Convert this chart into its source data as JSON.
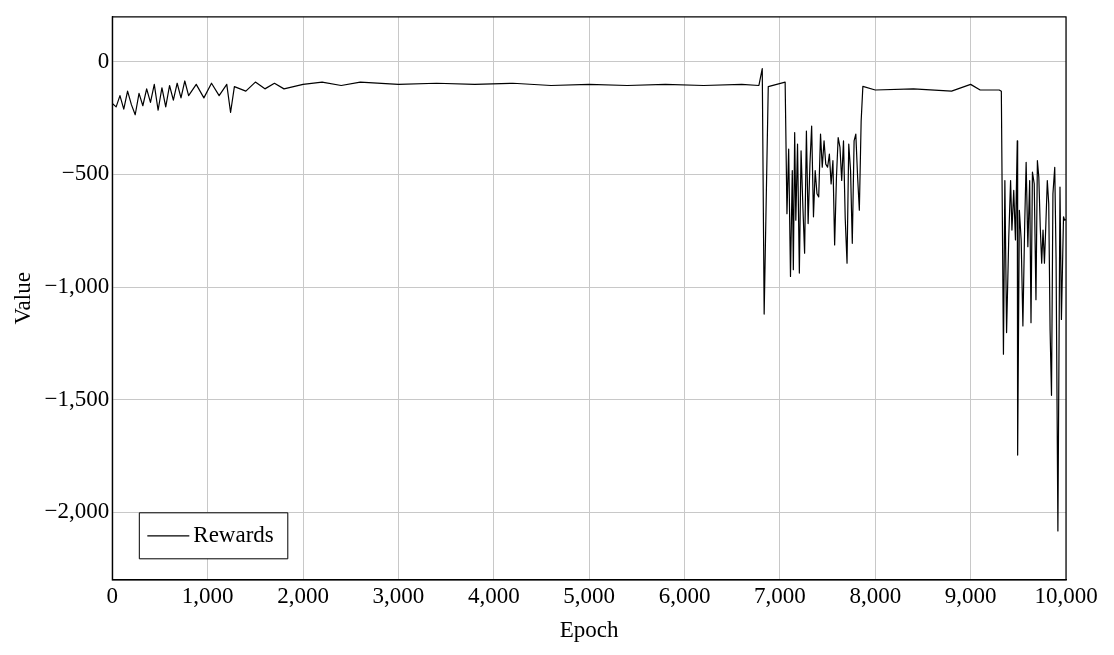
{
  "chart_data": {
    "type": "line",
    "xlabel": "Epoch",
    "ylabel": "Value",
    "xlim": [
      0,
      10000
    ],
    "ylim": [
      -2300,
      200
    ],
    "xticks": [
      0,
      {
        "value": 1000,
        "label": "1,000"
      },
      {
        "value": 2000,
        "label": "2,000"
      },
      {
        "value": 3000,
        "label": "3,000"
      },
      {
        "value": 4000,
        "label": "4,000"
      },
      {
        "value": 5000,
        "label": "5,000"
      },
      {
        "value": 6000,
        "label": "6,000"
      },
      {
        "value": 7000,
        "label": "7,000"
      },
      {
        "value": 8000,
        "label": "8,000"
      },
      {
        "value": 9000,
        "label": "9,000"
      },
      {
        "value": 10000,
        "label": "10,000"
      }
    ],
    "yticks": [
      {
        "value": -2000,
        "label": "−2,000"
      },
      {
        "value": -1500,
        "label": "−1,500"
      },
      {
        "value": -1000,
        "label": "−1,000"
      },
      {
        "value": -500,
        "label": "−500"
      },
      0
    ],
    "grid": true,
    "legend": "bottom left",
    "marker": "none",
    "line_style": "solid",
    "x": [
      0,
      40,
      80,
      120,
      160,
      200,
      240,
      280,
      320,
      360,
      400,
      440,
      480,
      520,
      560,
      600,
      640,
      680,
      720,
      760,
      800,
      880,
      960,
      1040,
      1120,
      1200,
      1240,
      1280,
      1400,
      1500,
      1600,
      1700,
      1800,
      2000,
      2200,
      2400,
      2600,
      3000,
      3400,
      3800,
      4200,
      4600,
      5000,
      5400,
      5800,
      6200,
      6600,
      6780,
      6815,
      6835,
      6878,
      7055,
      7074,
      7092,
      7111,
      7130,
      7141,
      7155,
      7167,
      7185,
      7204,
      7222,
      7241,
      7259,
      7278,
      7296,
      7315,
      7333,
      7352,
      7370,
      7389,
      7407,
      7426,
      7444,
      7463,
      7481,
      7500,
      7519,
      7537,
      7556,
      7574,
      7593,
      7611,
      7630,
      7648,
      7667,
      7685,
      7704,
      7722,
      7741,
      7759,
      7778,
      7796,
      7815,
      7833,
      7852,
      7870,
      8000,
      8400,
      8800,
      9000,
      9100,
      9300,
      9322,
      9344,
      9359,
      9377,
      9400,
      9419,
      9433,
      9452,
      9470,
      9489,
      9493,
      9511,
      9530,
      9548,
      9567,
      9582,
      9600,
      9619,
      9633,
      9648,
      9667,
      9685,
      9700,
      9715,
      9730,
      9745,
      9759,
      9774,
      9789,
      9804,
      9819,
      9833,
      9848,
      9863,
      9882,
      9896,
      9915,
      9937,
      9952,
      9974,
      9985,
      10000
    ],
    "series": [
      {
        "name": "Rewards",
        "color": "#000000",
        "values": [
          -185,
          -200,
          -150,
          -210,
          -130,
          -190,
          -235,
          -140,
          -195,
          -120,
          -180,
          -100,
          -215,
          -115,
          -200,
          -105,
          -170,
          -95,
          -160,
          -85,
          -150,
          -100,
          -160,
          -95,
          -150,
          -100,
          -225,
          -110,
          -130,
          -90,
          -120,
          -95,
          -120,
          -100,
          -90,
          -105,
          -90,
          -100,
          -95,
          -100,
          -95,
          -105,
          -100,
          -105,
          -100,
          -105,
          -100,
          -105,
          -30,
          -1120,
          -110,
          -90,
          -674,
          -387,
          -953,
          -483,
          -923,
          -314,
          -703,
          -365,
          -938,
          -395,
          -644,
          -850,
          -307,
          -718,
          -454,
          -285,
          -688,
          -483,
          -586,
          -600,
          -321,
          -468,
          -351,
          -454,
          -468,
          -410,
          -542,
          -439,
          -813,
          -512,
          -336,
          -380,
          -527,
          -351,
          -696,
          -894,
          -365,
          -483,
          -806,
          -351,
          -321,
          -512,
          -659,
          -263,
          -109,
          -125,
          -120,
          -130,
          -100,
          -125,
          -125,
          -131,
          -1298,
          -527,
          -1202,
          -777,
          -527,
          -747,
          -571,
          -791,
          -351,
          -1746,
          -659,
          -791,
          -1173,
          -718,
          -446,
          -821,
          -527,
          -1158,
          -490,
          -542,
          -1056,
          -439,
          -512,
          -733,
          -894,
          -747,
          -894,
          -718,
          -527,
          -630,
          -1188,
          -1481,
          -586,
          -468,
          -879,
          -2083,
          -556,
          -1144,
          -688,
          -703,
          -700
        ]
      }
    ]
  }
}
